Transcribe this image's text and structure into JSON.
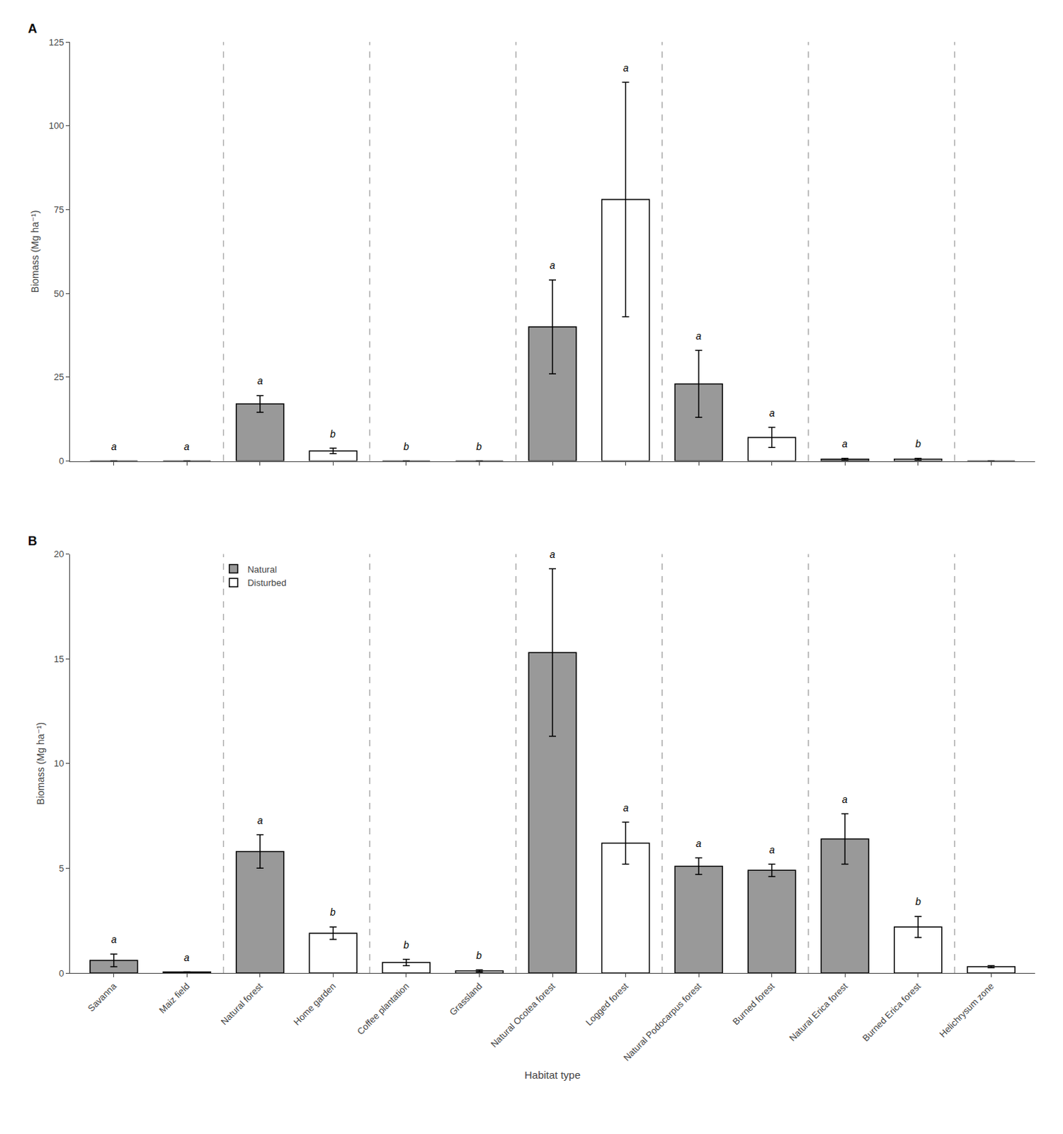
{
  "chart_data": [
    {
      "type": "bar",
      "title": "A",
      "categories": [
        "Savanna",
        "Maiz field",
        "Natural forest",
        "Home garden",
        "Coffee plantation",
        "Grassland",
        "Natural Ocotea forest",
        "Logged forest",
        "Natural Podocarpus forest",
        "Burned forest",
        "Natural Erica forest",
        "Burned Erica forest",
        "Helichrysum zone"
      ],
      "series": [
        {
          "name": "Natural",
          "color": "#999999",
          "values": [
            0.0,
            0.0,
            17.0,
            null,
            null,
            null,
            40.0,
            null,
            23.0,
            null,
            0.5,
            null,
            null
          ],
          "errors": [
            0.0,
            0.0,
            2.5,
            null,
            null,
            null,
            14.0,
            null,
            10.0,
            null,
            0.3,
            null,
            null
          ]
        },
        {
          "name": "Disturbed",
          "color": "#ffffff",
          "values": [
            null,
            null,
            null,
            3.0,
            0.0,
            0.0,
            null,
            78.0,
            null,
            7.0,
            null,
            0.5,
            0.0
          ],
          "errors": [
            null,
            null,
            null,
            0.8,
            0.0,
            0.0,
            null,
            35.0,
            null,
            3.0,
            null,
            0.3,
            0.0
          ]
        }
      ],
      "annotations": [
        {
          "x": "Savanna",
          "text": "a"
        },
        {
          "x": "Maiz field",
          "text": "a"
        },
        {
          "x": "Natural forest",
          "text": "a"
        },
        {
          "x": "Home garden",
          "text": "b"
        },
        {
          "x": "Coffee plantation",
          "text": "b"
        },
        {
          "x": "Grassland",
          "text": "b"
        },
        {
          "x": "Natural Ocotea forest",
          "text": "a"
        },
        {
          "x": "Logged forest",
          "text": "a"
        },
        {
          "x": "Natural Podocarpus forest",
          "text": "a"
        },
        {
          "x": "Burned forest",
          "text": "a"
        },
        {
          "x": "Natural Erica forest",
          "text": "a"
        },
        {
          "x": "Burned Erica forest",
          "text": "b"
        }
      ],
      "separators": [
        "Maiz field",
        "Grassland",
        "Home garden",
        "Logged forest",
        "Burned forest",
        "Burned Erica forest"
      ],
      "ylabel": "Biomass (Mg ha⁻¹)",
      "ylim": [
        0,
        125
      ],
      "yticks": [
        0,
        25,
        50,
        75,
        100,
        125
      ],
      "grid": false,
      "tick_labels": "y"
    },
    {
      "type": "bar",
      "title": "B",
      "categories": [
        "Savanna",
        "Maiz field",
        "Natural forest",
        "Home garden",
        "Coffee plantation",
        "Grassland",
        "Natural Ocotea forest",
        "Logged forest",
        "Natural Podocarpus forest",
        "Burned forest",
        "Natural Erica forest",
        "Burned Erica forest",
        "Helichrysum zone"
      ],
      "series": [
        {
          "name": "Natural",
          "color": "#999999",
          "values": [
            0.6,
            0.05,
            5.8,
            null,
            null,
            null,
            15.3,
            null,
            5.1,
            4.9,
            6.4,
            null,
            null
          ],
          "errors": [
            0.3,
            0.0,
            0.8,
            null,
            null,
            null,
            4.0,
            null,
            0.4,
            0.3,
            1.2,
            null,
            null
          ]
        },
        {
          "name": "Disturbed",
          "color": "#ffffff",
          "values": [
            null,
            null,
            null,
            1.9,
            0.5,
            0.1,
            null,
            6.2,
            null,
            null,
            null,
            2.2,
            0.3
          ],
          "errors": [
            null,
            null,
            null,
            0.3,
            0.15,
            0.05,
            null,
            1.0,
            null,
            null,
            null,
            0.5,
            0.05
          ]
        }
      ],
      "annotations": [
        {
          "x": "Savanna",
          "text": "a"
        },
        {
          "x": "Maiz field",
          "text": "a"
        },
        {
          "x": "Natural forest",
          "text": "a"
        },
        {
          "x": "Home garden",
          "text": "b"
        },
        {
          "x": "Coffee plantation",
          "text": "b"
        },
        {
          "x": "Grassland",
          "text": "b"
        },
        {
          "x": "Natural Ocotea forest",
          "text": "a"
        },
        {
          "x": "Logged forest",
          "text": "a"
        },
        {
          "x": "Natural Podocarpus forest",
          "text": "a"
        },
        {
          "x": "Burned forest",
          "text": "a"
        },
        {
          "x": "Natural Erica forest",
          "text": "a"
        },
        {
          "x": "Burned Erica forest",
          "text": "b"
        }
      ],
      "separators": [
        "Maiz field",
        "Grassland",
        "Home garden",
        "Logged forest",
        "Burned forest",
        "Burned Erica forest"
      ],
      "xlabel": "Habitat type",
      "ylabel": "Biomass (Mg ha⁻¹)",
      "ylim": [
        0,
        20
      ],
      "yticks": [
        0,
        5,
        10,
        15,
        20
      ],
      "grid": false,
      "legend": "upper left"
    }
  ]
}
